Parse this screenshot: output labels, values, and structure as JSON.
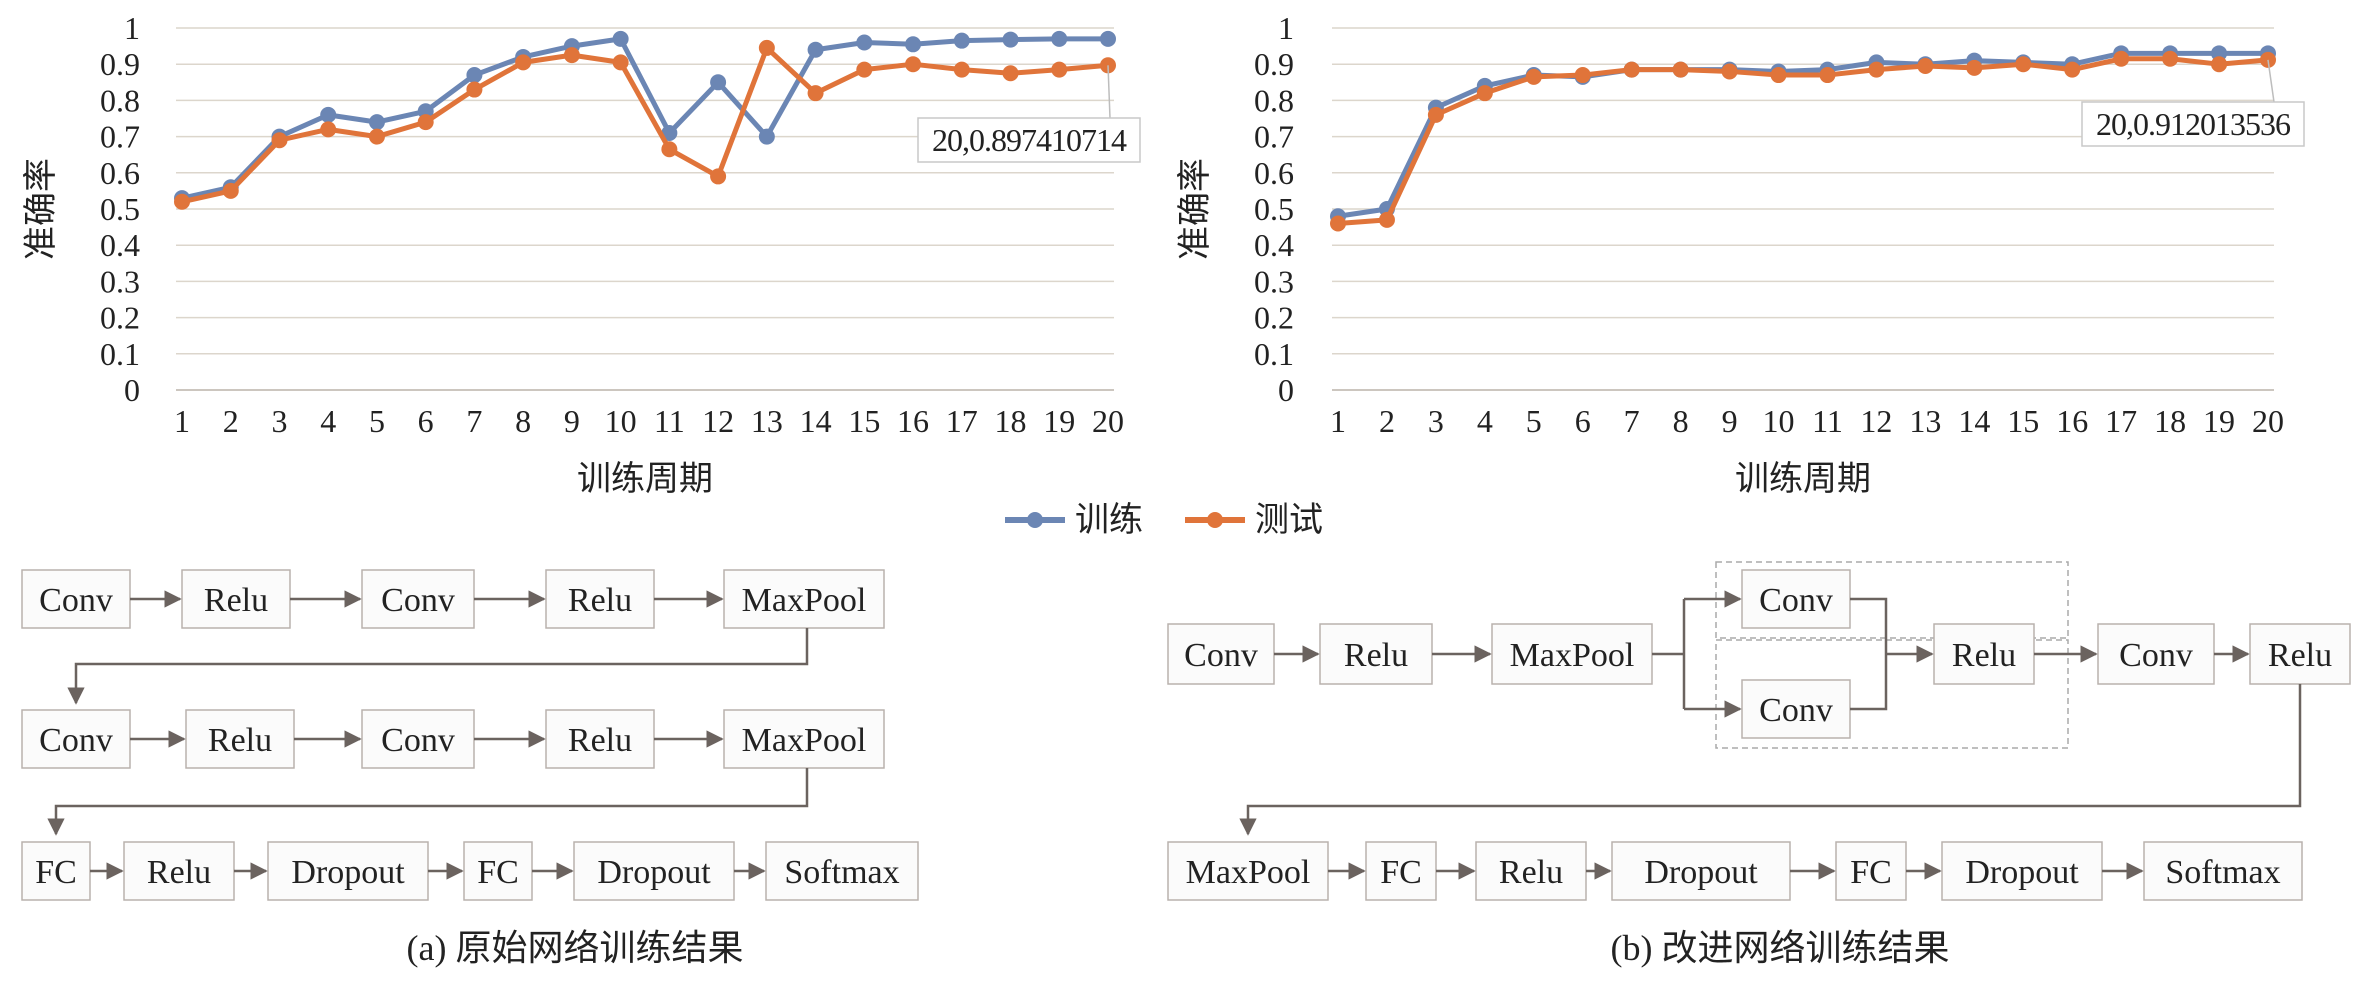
{
  "charts": {
    "ylabel": "准确率",
    "xlabel": "训练周期",
    "legend": {
      "train": "训练",
      "test": "测试"
    },
    "colors": {
      "train": "#6b86b4",
      "test": "#e0743a",
      "grid": "#dcd6cc",
      "axis": "#bbb4aa"
    },
    "y_ticks": [
      "0",
      "0.1",
      "0.2",
      "0.3",
      "0.4",
      "0.5",
      "0.6",
      "0.7",
      "0.8",
      "0.9",
      "1"
    ],
    "x_ticks": [
      "1",
      "2",
      "3",
      "4",
      "5",
      "6",
      "7",
      "8",
      "9",
      "10",
      "11",
      "12",
      "13",
      "14",
      "15",
      "16",
      "17",
      "18",
      "19",
      "20"
    ]
  },
  "chart_data": [
    {
      "type": "line",
      "x": [
        1,
        2,
        3,
        4,
        5,
        6,
        7,
        8,
        9,
        10,
        11,
        12,
        13,
        14,
        15,
        16,
        17,
        18,
        19,
        20
      ],
      "series": [
        {
          "name": "训练",
          "values": [
            0.53,
            0.56,
            0.7,
            0.76,
            0.74,
            0.77,
            0.87,
            0.92,
            0.95,
            0.97,
            0.71,
            0.85,
            0.7,
            0.94,
            0.96,
            0.955,
            0.965,
            0.968,
            0.97,
            0.97
          ]
        },
        {
          "name": "测试",
          "values": [
            0.52,
            0.55,
            0.69,
            0.72,
            0.7,
            0.74,
            0.83,
            0.905,
            0.925,
            0.905,
            0.665,
            0.59,
            0.945,
            0.82,
            0.885,
            0.9,
            0.885,
            0.875,
            0.885,
            0.897
          ]
        }
      ],
      "ylim": [
        0,
        1
      ],
      "annotation": "20,0.897410714",
      "grid": true,
      "legend_position": "bottom-center"
    },
    {
      "type": "line",
      "x": [
        1,
        2,
        3,
        4,
        5,
        6,
        7,
        8,
        9,
        10,
        11,
        12,
        13,
        14,
        15,
        16,
        17,
        18,
        19,
        20
      ],
      "series": [
        {
          "name": "训练",
          "values": [
            0.48,
            0.5,
            0.78,
            0.84,
            0.87,
            0.865,
            0.885,
            0.885,
            0.885,
            0.88,
            0.885,
            0.905,
            0.9,
            0.91,
            0.905,
            0.9,
            0.93,
            0.93,
            0.93,
            0.93
          ]
        },
        {
          "name": "测试",
          "values": [
            0.46,
            0.47,
            0.76,
            0.82,
            0.865,
            0.87,
            0.885,
            0.885,
            0.88,
            0.87,
            0.87,
            0.885,
            0.895,
            0.89,
            0.9,
            0.885,
            0.915,
            0.915,
            0.9,
            0.912
          ]
        }
      ],
      "ylim": [
        0,
        1
      ],
      "annotation": "20,0.912013536",
      "grid": true,
      "legend_position": "bottom-center"
    }
  ],
  "diagram_a": {
    "row1": [
      "Conv",
      "Relu",
      "Conv",
      "Relu",
      "MaxPool"
    ],
    "row2": [
      "Conv",
      "Relu",
      "Conv",
      "Relu",
      "MaxPool"
    ],
    "row3": [
      "FC",
      "Relu",
      "Dropout",
      "FC",
      "Dropout",
      "Softmax"
    ],
    "caption": "(a) 原始网络训练结果"
  },
  "diagram_b": {
    "row1": [
      "Conv",
      "Relu",
      "MaxPool",
      "Conv",
      "Conv",
      "Relu",
      "Conv",
      "Relu"
    ],
    "row2": [
      "MaxPool",
      "FC",
      "Relu",
      "Dropout",
      "FC",
      "Dropout",
      "Softmax"
    ],
    "caption": "(b) 改进网络训练结果"
  }
}
